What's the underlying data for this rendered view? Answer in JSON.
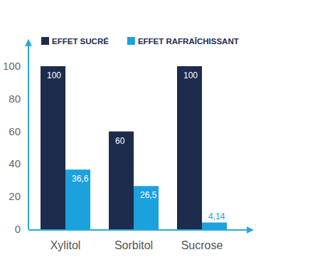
{
  "chart_data": {
    "type": "bar",
    "categories": [
      "Xylitol",
      "Sorbitol",
      "Sucrose"
    ],
    "series": [
      {
        "name": "EFFET SUCRÉ",
        "color": "#1d2b4d",
        "values": [
          100,
          60,
          100
        ]
      },
      {
        "name": "EFFET RAFRAÎCHISSANT",
        "color": "#1ba1dc",
        "values": [
          36.6,
          26.5,
          4.14
        ],
        "value_labels": [
          "36,6",
          "26,5",
          "4,14"
        ]
      }
    ],
    "ylim": [
      0,
      115
    ],
    "yticks": [
      0,
      20,
      40,
      60,
      80,
      100
    ],
    "grid": false,
    "legend": "top",
    "data_labels": true
  }
}
